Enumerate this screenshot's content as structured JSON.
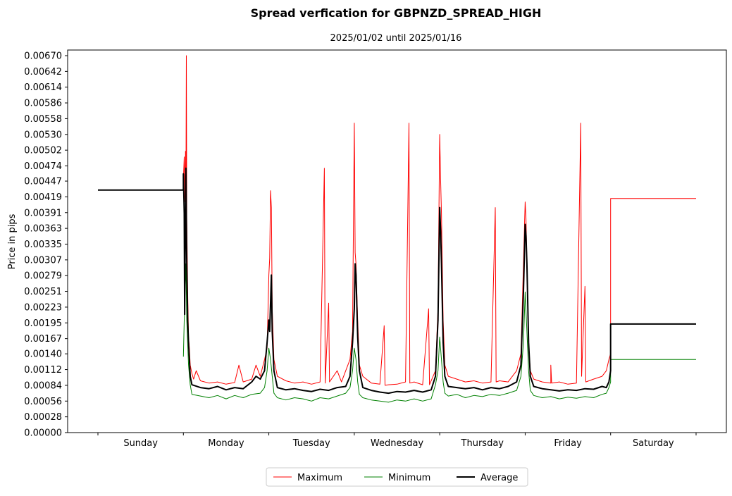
{
  "chart_data": {
    "type": "line",
    "title": "Spread verfication for GBPNZD_SPREAD_HIGH",
    "subtitle": "2025/01/02 until 2025/01/16",
    "ylabel": "Price in pips",
    "xlabel": "",
    "x_range": [
      0,
      7
    ],
    "ylim": [
      0,
      0.0068
    ],
    "categories": [
      "Sunday",
      "Monday",
      "Tuesday",
      "Wednesday",
      "Thursday",
      "Friday",
      "Saturday"
    ],
    "y_ticks": [
      "0.00000",
      "0.00028",
      "0.00056",
      "0.00084",
      "0.00112",
      "0.00140",
      "0.00167",
      "0.00195",
      "0.00223",
      "0.00251",
      "0.00279",
      "0.00307",
      "0.00335",
      "0.00363",
      "0.00391",
      "0.00419",
      "0.00447",
      "0.00474",
      "0.00502",
      "0.00530",
      "0.00558",
      "0.00586",
      "0.00614",
      "0.00642",
      "0.00670"
    ],
    "grid": false,
    "legend_position": "bottom-center",
    "series": [
      {
        "name": "Maximum",
        "color": "#ff0000",
        "width": 1,
        "points": [
          [
            1.0,
            0.0045
          ],
          [
            1.01,
            0.0049
          ],
          [
            1.02,
            0.0041
          ],
          [
            1.025,
            0.005
          ],
          [
            1.03,
            0.0042
          ],
          [
            1.035,
            0.0067
          ],
          [
            1.04,
            0.0038
          ],
          [
            1.05,
            0.0025
          ],
          [
            1.06,
            0.0017
          ],
          [
            1.07,
            0.0015
          ],
          [
            1.08,
            0.0012
          ],
          [
            1.1,
            0.00105
          ],
          [
            1.12,
            0.00095
          ],
          [
            1.15,
            0.0011
          ],
          [
            1.2,
            0.00092
          ],
          [
            1.3,
            0.00088
          ],
          [
            1.4,
            0.0009
          ],
          [
            1.5,
            0.00086
          ],
          [
            1.6,
            0.00089
          ],
          [
            1.65,
            0.0012
          ],
          [
            1.7,
            0.0009
          ],
          [
            1.8,
            0.00095
          ],
          [
            1.85,
            0.0012
          ],
          [
            1.9,
            0.001
          ],
          [
            1.95,
            0.0013
          ],
          [
            1.98,
            0.0015
          ],
          [
            2.0,
            0.0028
          ],
          [
            2.01,
            0.0031
          ],
          [
            2.02,
            0.0043
          ],
          [
            2.03,
            0.004
          ],
          [
            2.04,
            0.0022
          ],
          [
            2.06,
            0.0013
          ],
          [
            2.1,
            0.001
          ],
          [
            2.2,
            0.00092
          ],
          [
            2.3,
            0.00088
          ],
          [
            2.4,
            0.0009
          ],
          [
            2.5,
            0.00086
          ],
          [
            2.6,
            0.0009
          ],
          [
            2.65,
            0.0047
          ],
          [
            2.66,
            0.00088
          ],
          [
            2.7,
            0.0023
          ],
          [
            2.71,
            0.0009
          ],
          [
            2.8,
            0.0011
          ],
          [
            2.85,
            0.0009
          ],
          [
            2.95,
            0.0013
          ],
          [
            2.98,
            0.0018
          ],
          [
            3.0,
            0.0055
          ],
          [
            3.01,
            0.0032
          ],
          [
            3.02,
            0.003
          ],
          [
            3.04,
            0.002
          ],
          [
            3.06,
            0.0012
          ],
          [
            3.1,
            0.001
          ],
          [
            3.2,
            0.00088
          ],
          [
            3.3,
            0.00086
          ],
          [
            3.35,
            0.0019
          ],
          [
            3.36,
            0.00084
          ],
          [
            3.4,
            0.00085
          ],
          [
            3.5,
            0.00086
          ],
          [
            3.6,
            0.0009
          ],
          [
            3.64,
            0.0055
          ],
          [
            3.65,
            0.00088
          ],
          [
            3.7,
            0.0009
          ],
          [
            3.8,
            0.00085
          ],
          [
            3.87,
            0.0022
          ],
          [
            3.88,
            0.00085
          ],
          [
            3.95,
            0.0011
          ],
          [
            3.98,
            0.0022
          ],
          [
            4.0,
            0.0053
          ],
          [
            4.01,
            0.0045
          ],
          [
            4.02,
            0.0039
          ],
          [
            4.04,
            0.002
          ],
          [
            4.06,
            0.0012
          ],
          [
            4.1,
            0.001
          ],
          [
            4.2,
            0.00095
          ],
          [
            4.3,
            0.0009
          ],
          [
            4.4,
            0.00092
          ],
          [
            4.5,
            0.00088
          ],
          [
            4.6,
            0.0009
          ],
          [
            4.65,
            0.004
          ],
          [
            4.66,
            0.0009
          ],
          [
            4.7,
            0.00092
          ],
          [
            4.8,
            0.0009
          ],
          [
            4.9,
            0.0011
          ],
          [
            4.95,
            0.0014
          ],
          [
            4.98,
            0.003
          ],
          [
            5.0,
            0.0041
          ],
          [
            5.01,
            0.0038
          ],
          [
            5.02,
            0.003
          ],
          [
            5.04,
            0.0016
          ],
          [
            5.06,
            0.0011
          ],
          [
            5.1,
            0.00095
          ],
          [
            5.2,
            0.0009
          ],
          [
            5.3,
            0.00088
          ],
          [
            5.3,
            0.0012
          ],
          [
            5.31,
            0.00088
          ],
          [
            5.4,
            0.0009
          ],
          [
            5.5,
            0.00086
          ],
          [
            5.6,
            0.00088
          ],
          [
            5.65,
            0.0055
          ],
          [
            5.66,
            0.001
          ],
          [
            5.7,
            0.0026
          ],
          [
            5.71,
            0.0009
          ],
          [
            5.8,
            0.00095
          ],
          [
            5.9,
            0.001
          ],
          [
            5.95,
            0.0011
          ],
          [
            5.98,
            0.0013
          ],
          [
            6.0,
            0.0014
          ],
          [
            6.0,
            0.00416
          ],
          [
            7.0,
            0.00416
          ]
        ]
      },
      {
        "name": "Minimum",
        "color": "#008000",
        "width": 1,
        "points": [
          [
            1.0,
            0.00135
          ],
          [
            1.01,
            0.002
          ],
          [
            1.03,
            0.003
          ],
          [
            1.04,
            0.002
          ],
          [
            1.06,
            0.0012
          ],
          [
            1.08,
            0.00085
          ],
          [
            1.1,
            0.00068
          ],
          [
            1.2,
            0.00065
          ],
          [
            1.3,
            0.00062
          ],
          [
            1.4,
            0.00066
          ],
          [
            1.5,
            0.0006
          ],
          [
            1.6,
            0.00066
          ],
          [
            1.7,
            0.00062
          ],
          [
            1.8,
            0.00068
          ],
          [
            1.9,
            0.0007
          ],
          [
            1.95,
            0.0008
          ],
          [
            1.98,
            0.0011
          ],
          [
            2.0,
            0.0015
          ],
          [
            2.02,
            0.0013
          ],
          [
            2.04,
            0.001
          ],
          [
            2.06,
            0.0007
          ],
          [
            2.1,
            0.00062
          ],
          [
            2.2,
            0.00058
          ],
          [
            2.3,
            0.00062
          ],
          [
            2.4,
            0.0006
          ],
          [
            2.5,
            0.00056
          ],
          [
            2.6,
            0.00062
          ],
          [
            2.7,
            0.0006
          ],
          [
            2.8,
            0.00065
          ],
          [
            2.9,
            0.0007
          ],
          [
            2.95,
            0.0008
          ],
          [
            2.98,
            0.0011
          ],
          [
            3.0,
            0.0015
          ],
          [
            3.02,
            0.0013
          ],
          [
            3.04,
            0.0009
          ],
          [
            3.06,
            0.00068
          ],
          [
            3.1,
            0.00062
          ],
          [
            3.2,
            0.00058
          ],
          [
            3.3,
            0.00056
          ],
          [
            3.4,
            0.00054
          ],
          [
            3.5,
            0.00058
          ],
          [
            3.6,
            0.00056
          ],
          [
            3.7,
            0.0006
          ],
          [
            3.8,
            0.00056
          ],
          [
            3.9,
            0.0006
          ],
          [
            3.95,
            0.00085
          ],
          [
            3.98,
            0.0011
          ],
          [
            4.0,
            0.0017
          ],
          [
            4.02,
            0.0013
          ],
          [
            4.04,
            0.0009
          ],
          [
            4.06,
            0.0007
          ],
          [
            4.1,
            0.00065
          ],
          [
            4.2,
            0.00068
          ],
          [
            4.3,
            0.00062
          ],
          [
            4.4,
            0.00066
          ],
          [
            4.5,
            0.00064
          ],
          [
            4.6,
            0.00068
          ],
          [
            4.7,
            0.00066
          ],
          [
            4.8,
            0.0007
          ],
          [
            4.9,
            0.00075
          ],
          [
            4.95,
            0.001
          ],
          [
            4.98,
            0.0016
          ],
          [
            5.0,
            0.0025
          ],
          [
            5.02,
            0.0018
          ],
          [
            5.04,
            0.0011
          ],
          [
            5.06,
            0.00075
          ],
          [
            5.1,
            0.00066
          ],
          [
            5.2,
            0.00062
          ],
          [
            5.3,
            0.00064
          ],
          [
            5.4,
            0.0006
          ],
          [
            5.5,
            0.00063
          ],
          [
            5.6,
            0.00061
          ],
          [
            5.7,
            0.00064
          ],
          [
            5.8,
            0.00062
          ],
          [
            5.9,
            0.00068
          ],
          [
            5.95,
            0.0007
          ],
          [
            5.98,
            0.0008
          ],
          [
            6.0,
            0.0009
          ],
          [
            6.0,
            0.0013
          ],
          [
            7.0,
            0.0013
          ]
        ]
      },
      {
        "name": "Average",
        "color": "#000000",
        "width": 2,
        "points": [
          [
            0.0,
            0.00431
          ],
          [
            1.0,
            0.00431
          ],
          [
            1.0,
            0.0046
          ],
          [
            1.01,
            0.0039
          ],
          [
            1.015,
            0.0021
          ],
          [
            1.02,
            0.003
          ],
          [
            1.03,
            0.0047
          ],
          [
            1.04,
            0.003
          ],
          [
            1.05,
            0.002
          ],
          [
            1.06,
            0.0016
          ],
          [
            1.08,
            0.001
          ],
          [
            1.1,
            0.00085
          ],
          [
            1.2,
            0.0008
          ],
          [
            1.3,
            0.00078
          ],
          [
            1.4,
            0.00082
          ],
          [
            1.5,
            0.00076
          ],
          [
            1.6,
            0.0008
          ],
          [
            1.7,
            0.00078
          ],
          [
            1.8,
            0.0009
          ],
          [
            1.85,
            0.001
          ],
          [
            1.9,
            0.00095
          ],
          [
            1.95,
            0.0011
          ],
          [
            1.98,
            0.0016
          ],
          [
            2.0,
            0.002
          ],
          [
            2.01,
            0.0018
          ],
          [
            2.02,
            0.0023
          ],
          [
            2.03,
            0.0028
          ],
          [
            2.04,
            0.0018
          ],
          [
            2.06,
            0.0011
          ],
          [
            2.1,
            0.0008
          ],
          [
            2.2,
            0.00076
          ],
          [
            2.3,
            0.00078
          ],
          [
            2.4,
            0.00075
          ],
          [
            2.5,
            0.00073
          ],
          [
            2.6,
            0.00077
          ],
          [
            2.7,
            0.00075
          ],
          [
            2.8,
            0.0008
          ],
          [
            2.9,
            0.00082
          ],
          [
            2.95,
            0.001
          ],
          [
            2.98,
            0.0016
          ],
          [
            3.0,
            0.0022
          ],
          [
            3.01,
            0.003
          ],
          [
            3.02,
            0.0028
          ],
          [
            3.04,
            0.0017
          ],
          [
            3.06,
            0.0011
          ],
          [
            3.1,
            0.0008
          ],
          [
            3.2,
            0.00075
          ],
          [
            3.3,
            0.00072
          ],
          [
            3.4,
            0.0007
          ],
          [
            3.5,
            0.00073
          ],
          [
            3.6,
            0.00072
          ],
          [
            3.7,
            0.00075
          ],
          [
            3.8,
            0.00072
          ],
          [
            3.9,
            0.00076
          ],
          [
            3.95,
            0.001
          ],
          [
            3.98,
            0.002
          ],
          [
            4.0,
            0.004
          ],
          [
            4.01,
            0.0036
          ],
          [
            4.02,
            0.003
          ],
          [
            4.04,
            0.0016
          ],
          [
            4.06,
            0.001
          ],
          [
            4.1,
            0.00082
          ],
          [
            4.2,
            0.0008
          ],
          [
            4.3,
            0.00078
          ],
          [
            4.4,
            0.0008
          ],
          [
            4.5,
            0.00076
          ],
          [
            4.6,
            0.0008
          ],
          [
            4.7,
            0.00078
          ],
          [
            4.8,
            0.00082
          ],
          [
            4.9,
            0.0009
          ],
          [
            4.95,
            0.0012
          ],
          [
            4.98,
            0.0025
          ],
          [
            5.0,
            0.0037
          ],
          [
            5.01,
            0.0035
          ],
          [
            5.02,
            0.003
          ],
          [
            5.04,
            0.0016
          ],
          [
            5.06,
            0.001
          ],
          [
            5.1,
            0.00082
          ],
          [
            5.2,
            0.00078
          ],
          [
            5.3,
            0.00076
          ],
          [
            5.4,
            0.00074
          ],
          [
            5.5,
            0.00076
          ],
          [
            5.6,
            0.00075
          ],
          [
            5.7,
            0.00078
          ],
          [
            5.8,
            0.00077
          ],
          [
            5.9,
            0.00082
          ],
          [
            5.95,
            0.0008
          ],
          [
            5.98,
            0.0009
          ],
          [
            6.0,
            0.0011
          ],
          [
            6.0,
            0.00193
          ],
          [
            7.0,
            0.00193
          ]
        ]
      }
    ]
  }
}
